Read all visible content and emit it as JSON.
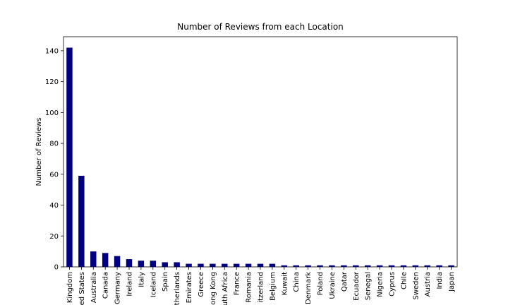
{
  "chart_data": {
    "type": "bar",
    "title": "Number of Reviews from each Location",
    "ylabel": "Number of Reviews",
    "categories": [
      "Kingdom",
      "ed States",
      "Australia",
      "Canada",
      "Germany",
      "Ireland",
      "Italy",
      "Iceland",
      "Spain",
      "therlands",
      "Emirates",
      "Greece",
      "ong Kong",
      "uth Africa",
      "France",
      "Romania",
      "itzerland",
      "Belgium",
      "Kuwait",
      "China",
      "Denmark",
      "Poland",
      "Ukraine",
      "Qatar",
      "Ecuador",
      "Senegal",
      "Nigeria",
      "Cyprus",
      "Chile",
      "Sweden",
      "Austria",
      "India",
      "Japan"
    ],
    "values": [
      142,
      59,
      10,
      9,
      7,
      5,
      4,
      4,
      3,
      3,
      2,
      2,
      2,
      2,
      2,
      2,
      2,
      2,
      1,
      1,
      1,
      1,
      1,
      1,
      1,
      1,
      1,
      1,
      1,
      1,
      1,
      1,
      1
    ],
    "color": "#000080",
    "ylim": [
      0,
      149.1
    ],
    "yticks": [
      0,
      20,
      40,
      60,
      80,
      100,
      120,
      140
    ],
    "grid": false
  }
}
